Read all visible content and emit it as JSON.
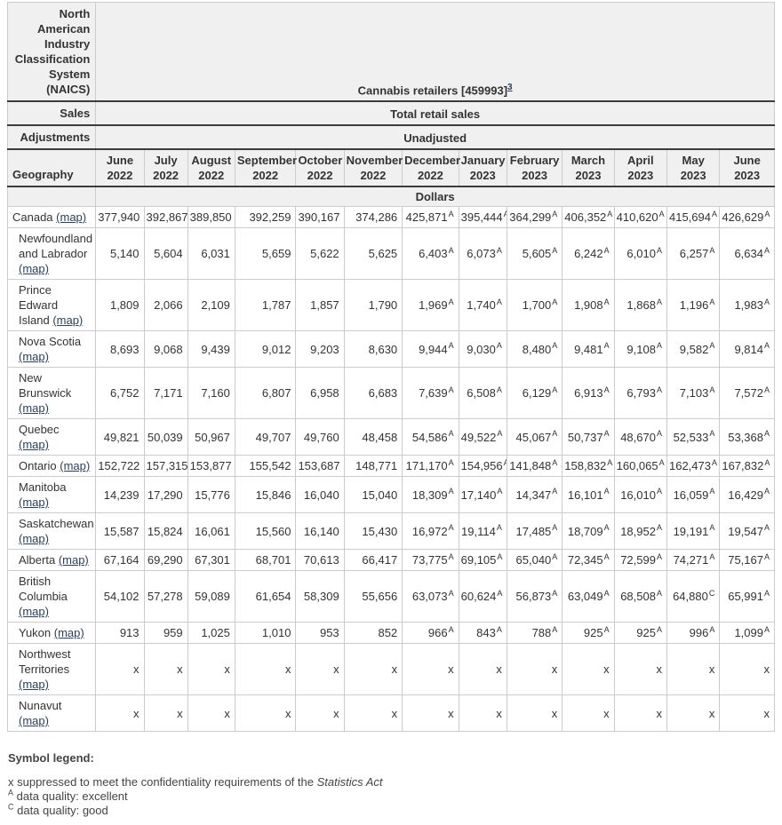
{
  "header": {
    "stub_naics": "North American Industry Classification System (NAICS)",
    "industry": "Cannabis retailers [459993]",
    "industry_footnote": "3",
    "stub_sales": "Sales",
    "sales_value": "Total retail sales",
    "stub_adjustments": "Adjustments",
    "adjustments_value": "Unadjusted",
    "stub_geography": "Geography",
    "unit_label": "Dollars",
    "months": [
      {
        "month": "June",
        "year": "2022"
      },
      {
        "month": "July",
        "year": "2022"
      },
      {
        "month": "August",
        "year": "2022"
      },
      {
        "month": "September",
        "year": "2022"
      },
      {
        "month": "October",
        "year": "2022"
      },
      {
        "month": "November",
        "year": "2022"
      },
      {
        "month": "December",
        "year": "2022"
      },
      {
        "month": "January",
        "year": "2023"
      },
      {
        "month": "February",
        "year": "2023"
      },
      {
        "month": "March",
        "year": "2023"
      },
      {
        "month": "April",
        "year": "2023"
      },
      {
        "month": "May",
        "year": "2023"
      },
      {
        "month": "June",
        "year": "2023"
      }
    ]
  },
  "table": {
    "map_label": "(map)",
    "rows": [
      {
        "name": "Canada",
        "indent": false,
        "values": [
          "377,940",
          "392,867",
          "389,850",
          "392,259",
          "390,167",
          "374,286",
          "425,871",
          "395,444",
          "364,299",
          "406,352",
          "410,620",
          "415,694",
          "426,629"
        ],
        "flags": [
          "",
          "",
          "",
          "",
          "",
          "",
          "A",
          "A",
          "A",
          "A",
          "A",
          "A",
          "A"
        ]
      },
      {
        "name": "Newfoundland and Labrador",
        "indent": true,
        "values": [
          "5,140",
          "5,604",
          "6,031",
          "5,659",
          "5,622",
          "5,625",
          "6,403",
          "6,073",
          "5,605",
          "6,242",
          "6,010",
          "6,257",
          "6,634"
        ],
        "flags": [
          "",
          "",
          "",
          "",
          "",
          "",
          "A",
          "A",
          "A",
          "A",
          "A",
          "A",
          "A"
        ]
      },
      {
        "name": "Prince Edward Island",
        "indent": true,
        "values": [
          "1,809",
          "2,066",
          "2,109",
          "1,787",
          "1,857",
          "1,790",
          "1,969",
          "1,740",
          "1,700",
          "1,908",
          "1,868",
          "1,196",
          "1,983"
        ],
        "flags": [
          "",
          "",
          "",
          "",
          "",
          "",
          "A",
          "A",
          "A",
          "A",
          "A",
          "A",
          "A"
        ]
      },
      {
        "name": "Nova Scotia",
        "indent": true,
        "values": [
          "8,693",
          "9,068",
          "9,439",
          "9,012",
          "9,203",
          "8,630",
          "9,944",
          "9,030",
          "8,480",
          "9,481",
          "9,108",
          "9,582",
          "9,814"
        ],
        "flags": [
          "",
          "",
          "",
          "",
          "",
          "",
          "A",
          "A",
          "A",
          "A",
          "A",
          "A",
          "A"
        ]
      },
      {
        "name": "New Brunswick",
        "indent": true,
        "values": [
          "6,752",
          "7,171",
          "7,160",
          "6,807",
          "6,958",
          "6,683",
          "7,639",
          "6,508",
          "6,129",
          "6,913",
          "6,793",
          "7,103",
          "7,572"
        ],
        "flags": [
          "",
          "",
          "",
          "",
          "",
          "",
          "A",
          "A",
          "A",
          "A",
          "A",
          "A",
          "A"
        ]
      },
      {
        "name": "Quebec",
        "indent": true,
        "values": [
          "49,821",
          "50,039",
          "50,967",
          "49,707",
          "49,760",
          "48,458",
          "54,586",
          "49,522",
          "45,067",
          "50,737",
          "48,670",
          "52,533",
          "53,368"
        ],
        "flags": [
          "",
          "",
          "",
          "",
          "",
          "",
          "A",
          "A",
          "A",
          "A",
          "A",
          "A",
          "A"
        ]
      },
      {
        "name": "Ontario",
        "indent": true,
        "values": [
          "152,722",
          "157,315",
          "153,877",
          "155,542",
          "153,687",
          "148,771",
          "171,170",
          "154,956",
          "141,848",
          "158,832",
          "160,065",
          "162,473",
          "167,832"
        ],
        "flags": [
          "",
          "",
          "",
          "",
          "",
          "",
          "A",
          "A",
          "A",
          "A",
          "A",
          "A",
          "A"
        ]
      },
      {
        "name": "Manitoba",
        "indent": true,
        "values": [
          "14,239",
          "17,290",
          "15,776",
          "15,846",
          "16,040",
          "15,040",
          "18,309",
          "17,140",
          "14,347",
          "16,101",
          "16,010",
          "16,059",
          "16,429"
        ],
        "flags": [
          "",
          "",
          "",
          "",
          "",
          "",
          "A",
          "A",
          "A",
          "A",
          "A",
          "A",
          "A"
        ]
      },
      {
        "name": "Saskatchewan",
        "indent": true,
        "values": [
          "15,587",
          "15,824",
          "16,061",
          "15,560",
          "16,140",
          "15,430",
          "16,972",
          "19,114",
          "17,485",
          "18,709",
          "18,952",
          "19,191",
          "19,547"
        ],
        "flags": [
          "",
          "",
          "",
          "",
          "",
          "",
          "A",
          "A",
          "A",
          "A",
          "A",
          "A",
          "A"
        ]
      },
      {
        "name": "Alberta",
        "indent": true,
        "values": [
          "67,164",
          "69,290",
          "67,301",
          "68,701",
          "70,613",
          "66,417",
          "73,775",
          "69,105",
          "65,040",
          "72,345",
          "72,599",
          "74,271",
          "75,167"
        ],
        "flags": [
          "",
          "",
          "",
          "",
          "",
          "",
          "A",
          "A",
          "A",
          "A",
          "A",
          "A",
          "A"
        ]
      },
      {
        "name": "British Columbia",
        "indent": true,
        "values": [
          "54,102",
          "57,278",
          "59,089",
          "61,654",
          "58,309",
          "55,656",
          "63,073",
          "60,624",
          "56,873",
          "63,049",
          "68,508",
          "64,880",
          "65,991"
        ],
        "flags": [
          "",
          "",
          "",
          "",
          "",
          "",
          "A",
          "A",
          "A",
          "A",
          "A",
          "C",
          "A"
        ]
      },
      {
        "name": "Yukon",
        "indent": true,
        "values": [
          "913",
          "959",
          "1,025",
          "1,010",
          "953",
          "852",
          "966",
          "843",
          "788",
          "925",
          "925",
          "996",
          "1,099"
        ],
        "flags": [
          "",
          "",
          "",
          "",
          "",
          "",
          "A",
          "A",
          "A",
          "A",
          "A",
          "A",
          "A"
        ]
      },
      {
        "name": "Northwest Territories",
        "indent": true,
        "values": [
          "x",
          "x",
          "x",
          "x",
          "x",
          "x",
          "x",
          "x",
          "x",
          "x",
          "x",
          "x",
          "x"
        ],
        "flags": [
          "",
          "",
          "",
          "",
          "",
          "",
          "",
          "",
          "",
          "",
          "",
          "",
          ""
        ]
      },
      {
        "name": "Nunavut",
        "indent": true,
        "values": [
          "x",
          "x",
          "x",
          "x",
          "x",
          "x",
          "x",
          "x",
          "x",
          "x",
          "x",
          "x",
          "x"
        ],
        "flags": [
          "",
          "",
          "",
          "",
          "",
          "",
          "",
          "",
          "",
          "",
          "",
          "",
          ""
        ]
      }
    ]
  },
  "legend": {
    "title": "Symbol legend:",
    "items": [
      {
        "symbol": "x",
        "symbol_sup": false,
        "text": "suppressed to meet the confidentiality requirements of the",
        "italic_text": "Statistics Act"
      },
      {
        "symbol": "A",
        "symbol_sup": true,
        "text": "data quality: excellent",
        "italic_text": ""
      },
      {
        "symbol": "C",
        "symbol_sup": true,
        "text": "data quality: good",
        "italic_text": ""
      }
    ]
  }
}
